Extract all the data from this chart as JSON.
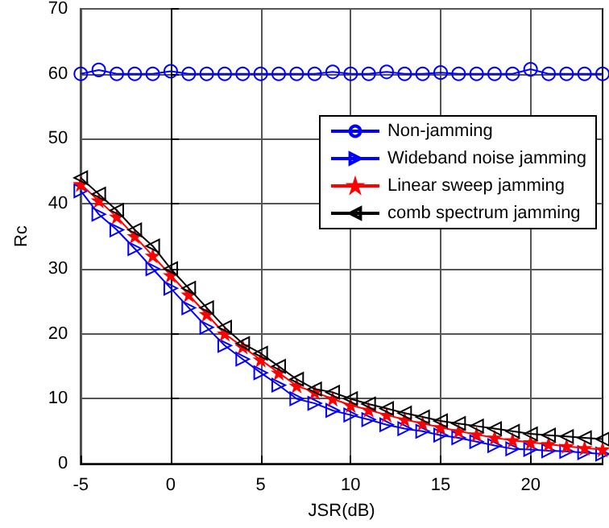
{
  "chart_data": {
    "type": "line",
    "xlabel": "JSR(dB)",
    "ylabel": "Rc",
    "x": [
      -5,
      -4,
      -3,
      -2,
      -1,
      0,
      1,
      2,
      3,
      4,
      5,
      6,
      7,
      8,
      9,
      10,
      11,
      12,
      13,
      14,
      15,
      16,
      17,
      18,
      19,
      20,
      21,
      22,
      23,
      24
    ],
    "series": [
      {
        "name": "Non-jamming",
        "color": "#0000ff",
        "marker": "circle",
        "values": [
          60,
          60.6,
          60,
          60,
          60,
          60.4,
          60,
          60,
          60,
          60,
          60,
          60,
          60,
          60,
          60.3,
          60,
          60,
          60.3,
          60,
          60,
          60.2,
          60,
          60,
          60,
          60,
          60.7,
          60,
          60,
          60,
          60
        ]
      },
      {
        "name": "Wideband noise jamming",
        "color": "#0000ff",
        "marker": "triangle-right",
        "values": [
          42,
          38.4,
          36,
          33.1,
          30,
          27,
          24,
          21,
          18.2,
          16.1,
          14,
          12.1,
          10,
          9.3,
          8.2,
          7.5,
          6.8,
          6,
          5.4,
          5,
          4.4,
          4,
          3.4,
          2.8,
          2.3,
          2.2,
          2,
          1.9,
          1.7,
          1.5
        ]
      },
      {
        "name": "Linear sweep jamming",
        "color": "#ff0000",
        "marker": "star",
        "values": [
          43,
          40.5,
          38,
          35,
          32,
          29,
          26,
          23,
          20,
          18,
          16,
          14,
          12,
          11,
          10,
          9,
          8.3,
          7.5,
          6.8,
          6.2,
          5.6,
          5,
          4.5,
          4,
          3.6,
          3.3,
          3,
          2.7,
          2.4,
          2.2
        ]
      },
      {
        "name": "comb spectrum jamming",
        "color": "#000000",
        "marker": "triangle-left",
        "values": [
          44,
          41.5,
          39,
          36,
          33.5,
          30,
          27,
          24,
          21,
          18.5,
          17,
          15,
          13,
          11.5,
          11,
          10,
          9.2,
          8.5,
          7.8,
          7.2,
          6.6,
          6.2,
          5.8,
          5.4,
          5,
          4.6,
          4.4,
          4.2,
          4,
          3.8
        ]
      }
    ],
    "xlim": [
      -5,
      24
    ],
    "xticks": [
      -5,
      0,
      5,
      10,
      15,
      20
    ],
    "ylim": [
      0,
      70
    ],
    "yticks": [
      0,
      10,
      20,
      30,
      40,
      50,
      60,
      70
    ],
    "grid": true,
    "legend": "top right",
    "line_style": "solid"
  }
}
